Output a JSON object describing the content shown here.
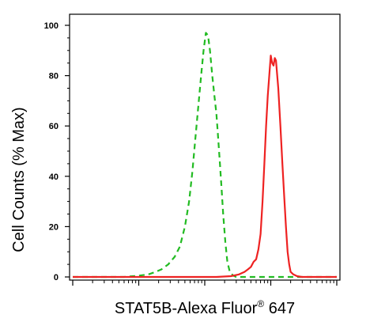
{
  "chart_data": {
    "type": "line",
    "title": "",
    "xlabel_main": "STAT5B-Alexa Fluor",
    "xlabel_reg": "®",
    "xlabel_tail": " 647",
    "ylabel": "Cell Counts (% Max)",
    "x_scale": "log",
    "xlim": [
      1,
      10000
    ],
    "ylim": [
      0,
      105
    ],
    "yticks": [
      0,
      20,
      40,
      60,
      80,
      100
    ],
    "ytick_labels": [
      "0",
      "20",
      "40",
      "60",
      "80",
      "100"
    ],
    "grid": false,
    "legend": "none",
    "series": [
      {
        "color": "#22bb22",
        "style": "dashed",
        "x": [
          1,
          6,
          10,
          14,
          18,
          22,
          28,
          35,
          42,
          50,
          58,
          65,
          72,
          80,
          88,
          96,
          104,
          112,
          120,
          130,
          140,
          150,
          160,
          170,
          180,
          190,
          205,
          220,
          240,
          270,
          300,
          400,
          600,
          1000,
          2000,
          5000,
          10000
        ],
        "values": [
          0,
          0,
          0.5,
          1,
          2,
          3,
          5,
          8,
          12,
          20,
          30,
          42,
          55,
          68,
          80,
          90,
          97,
          96,
          90,
          80,
          72,
          65,
          55,
          45,
          35,
          25,
          14,
          6,
          2,
          0.5,
          0,
          0,
          0,
          0,
          0,
          0,
          0
        ]
      },
      {
        "color": "#ee2222",
        "style": "solid",
        "x": [
          1,
          5,
          10,
          30,
          60,
          100,
          150,
          250,
          330,
          400,
          450,
          500,
          550,
          600,
          650,
          700,
          750,
          800,
          850,
          900,
          950,
          1000,
          1050,
          1100,
          1150,
          1200,
          1300,
          1400,
          1500,
          1600,
          1700,
          1800,
          1900,
          2000,
          2200,
          2500,
          3000,
          4000,
          6000,
          10000
        ],
        "values": [
          0,
          0,
          0,
          0,
          0,
          0,
          0,
          0.3,
          1,
          2,
          3,
          4,
          6,
          7,
          11,
          17,
          30,
          45,
          60,
          72,
          80,
          88,
          85,
          84,
          87,
          86,
          75,
          60,
          45,
          32,
          20,
          10,
          5,
          2,
          1,
          0.3,
          0,
          0,
          0,
          0
        ]
      }
    ]
  }
}
